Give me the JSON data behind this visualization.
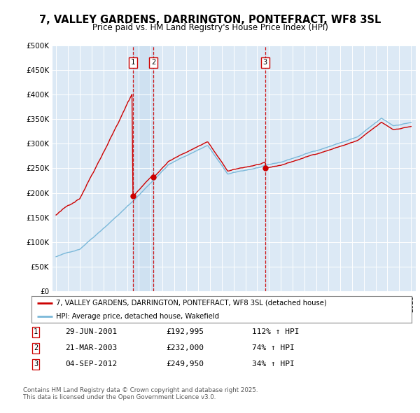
{
  "title": "7, VALLEY GARDENS, DARRINGTON, PONTEFRACT, WF8 3SL",
  "subtitle": "Price paid vs. HM Land Registry's House Price Index (HPI)",
  "ylim": [
    0,
    500000
  ],
  "yticks": [
    0,
    50000,
    100000,
    150000,
    200000,
    250000,
    300000,
    350000,
    400000,
    450000,
    500000
  ],
  "ytick_labels": [
    "£0",
    "£50K",
    "£100K",
    "£150K",
    "£200K",
    "£250K",
    "£300K",
    "£350K",
    "£400K",
    "£450K",
    "£500K"
  ],
  "plot_bg_color": "#dce9f5",
  "red_line_color": "#cc0000",
  "blue_line_color": "#7ab8d9",
  "sale_marker_color": "#cc0000",
  "dashed_line_color": "#cc0000",
  "shade_color": "#c8ddf0",
  "sales": [
    {
      "label": "1",
      "date": "29-JUN-2001",
      "price": 192995,
      "year": 2001.49,
      "pct": "112% ↑ HPI"
    },
    {
      "label": "2",
      "date": "21-MAR-2003",
      "price": 232000,
      "year": 2003.22,
      "pct": "74% ↑ HPI"
    },
    {
      "label": "3",
      "date": "04-SEP-2012",
      "price": 249950,
      "year": 2012.67,
      "pct": "34% ↑ HPI"
    }
  ],
  "legend_line1": "7, VALLEY GARDENS, DARRINGTON, PONTEFRACT, WF8 3SL (detached house)",
  "legend_line2": "HPI: Average price, detached house, Wakefield",
  "footer1": "Contains HM Land Registry data © Crown copyright and database right 2025.",
  "footer2": "This data is licensed under the Open Government Licence v3.0.",
  "xlim_left": 1994.7,
  "xlim_right": 2025.4
}
